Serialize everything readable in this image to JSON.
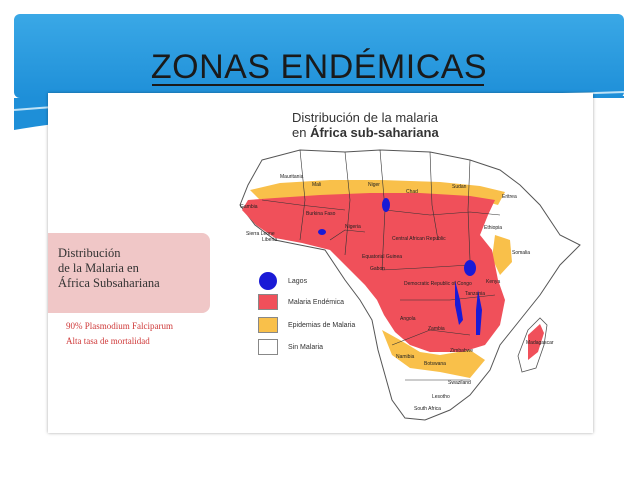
{
  "slide": {
    "title": "ZONAS ENDÉMICAS"
  },
  "map": {
    "title_line1": "Distribución de la malaria",
    "title_line2_prefix": "en ",
    "title_line2_bold": "África sub-sahariana"
  },
  "info_box": {
    "heading_line1": "Distribución",
    "heading_line2": "de la Malaria en",
    "heading_line3": "África Subsahariana",
    "note1": "90% Plasmodium Falciparum",
    "note2": "Alta tasa de mortalidad"
  },
  "legend": [
    {
      "label": "Lagos",
      "color": "#1a1ad6",
      "shape": "dot"
    },
    {
      "label": "Malaria Endémica",
      "color": "#f0505a",
      "shape": "box"
    },
    {
      "label": "Epidemias de Malaria",
      "color": "#f9c04a",
      "shape": "box"
    },
    {
      "label": "Sin Malaria",
      "color": "#ffffff",
      "shape": "box"
    }
  ],
  "country_labels": {
    "mauritania": "Mauritania",
    "mali": "Mali",
    "niger": "Niger",
    "chad": "Chad",
    "sudan": "Sudan",
    "eritrea": "Eritrea",
    "gambia": "Gambia",
    "burkina": "Burkina Faso",
    "sierra_leone": "Sierra Leone",
    "liberia": "Liberia",
    "nigeria": "Nigeria",
    "car": "Central African Republic",
    "ethiopia": "Ethiopia",
    "somalia": "Somalia",
    "eq_guinea": "Equatorial Guinea",
    "gabon": "Gabon",
    "drc": "Democratic Republic of Congo",
    "kenya": "Kenya",
    "tanzania": "Tanzania",
    "angola": "Angola",
    "zambia": "Zambia",
    "zimbabwe": "Zimbabwe",
    "namibia": "Namibia",
    "botswana": "Botswana",
    "madagascar": "Madagascar",
    "swaziland": "Swaziland",
    "lesotho": "Lesotho",
    "south_africa": "South Africa"
  },
  "colors": {
    "banner": "#1e8fd8",
    "endemic": "#f0505a",
    "epidemic": "#f9c04a",
    "lake": "#1a1ad6",
    "info_box": "#f0c7c7",
    "note_text": "#cf3a3a"
  }
}
